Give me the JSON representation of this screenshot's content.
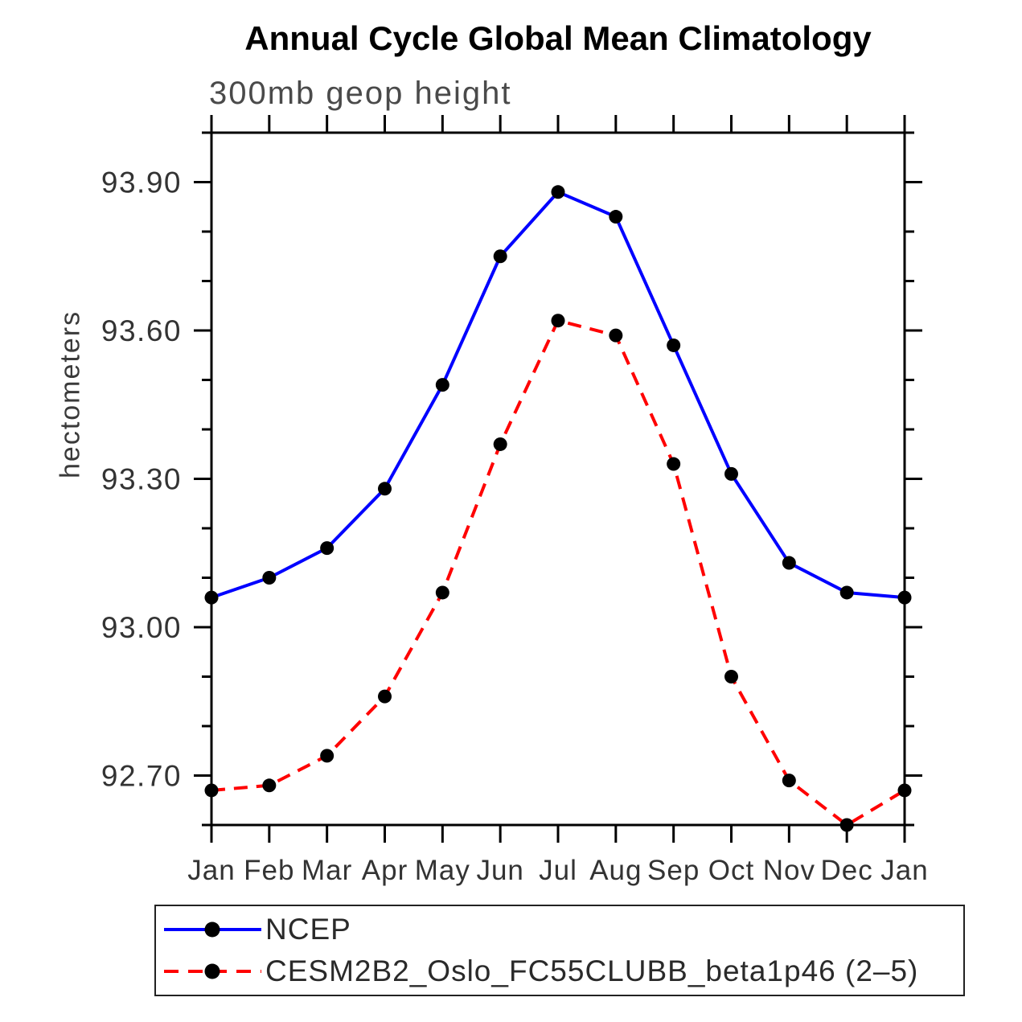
{
  "chart_data": {
    "type": "line",
    "title": "Annual Cycle Global Mean Climatology",
    "subtitle": "300mb geop height",
    "xlabel": "",
    "ylabel": "hectometers",
    "categories": [
      "Jan",
      "Feb",
      "Mar",
      "Apr",
      "May",
      "Jun",
      "Jul",
      "Aug",
      "Sep",
      "Oct",
      "Nov",
      "Dec",
      "Jan"
    ],
    "ylim": [
      92.6,
      94.0
    ],
    "yticks_major": [
      92.7,
      93.0,
      93.3,
      93.6,
      93.9
    ],
    "ytick_labels": [
      "92.70",
      "93.00",
      "93.30",
      "93.60",
      "93.90"
    ],
    "yticks_minor_step": 0.1,
    "grid": false,
    "legend_position": "bottom-left",
    "axis_color": "#000000",
    "tick_label_color": "#333333",
    "series": [
      {
        "name": "NCEP",
        "color": "#0000ff",
        "line_style": "solid",
        "marker": "filled-circle",
        "marker_color": "#000000",
        "values": [
          93.06,
          93.1,
          93.16,
          93.28,
          93.49,
          93.75,
          93.88,
          93.83,
          93.57,
          93.31,
          93.13,
          93.07,
          93.06
        ]
      },
      {
        "name": "CESM2B2_Oslo_FC55CLUBB_beta1p46 (2–5)",
        "color": "#ff0000",
        "line_style": "dashed",
        "marker": "filled-circle",
        "marker_color": "#000000",
        "values": [
          92.67,
          92.68,
          92.74,
          92.86,
          93.07,
          93.37,
          93.62,
          93.59,
          93.33,
          92.9,
          92.69,
          92.6,
          92.67
        ]
      }
    ]
  }
}
